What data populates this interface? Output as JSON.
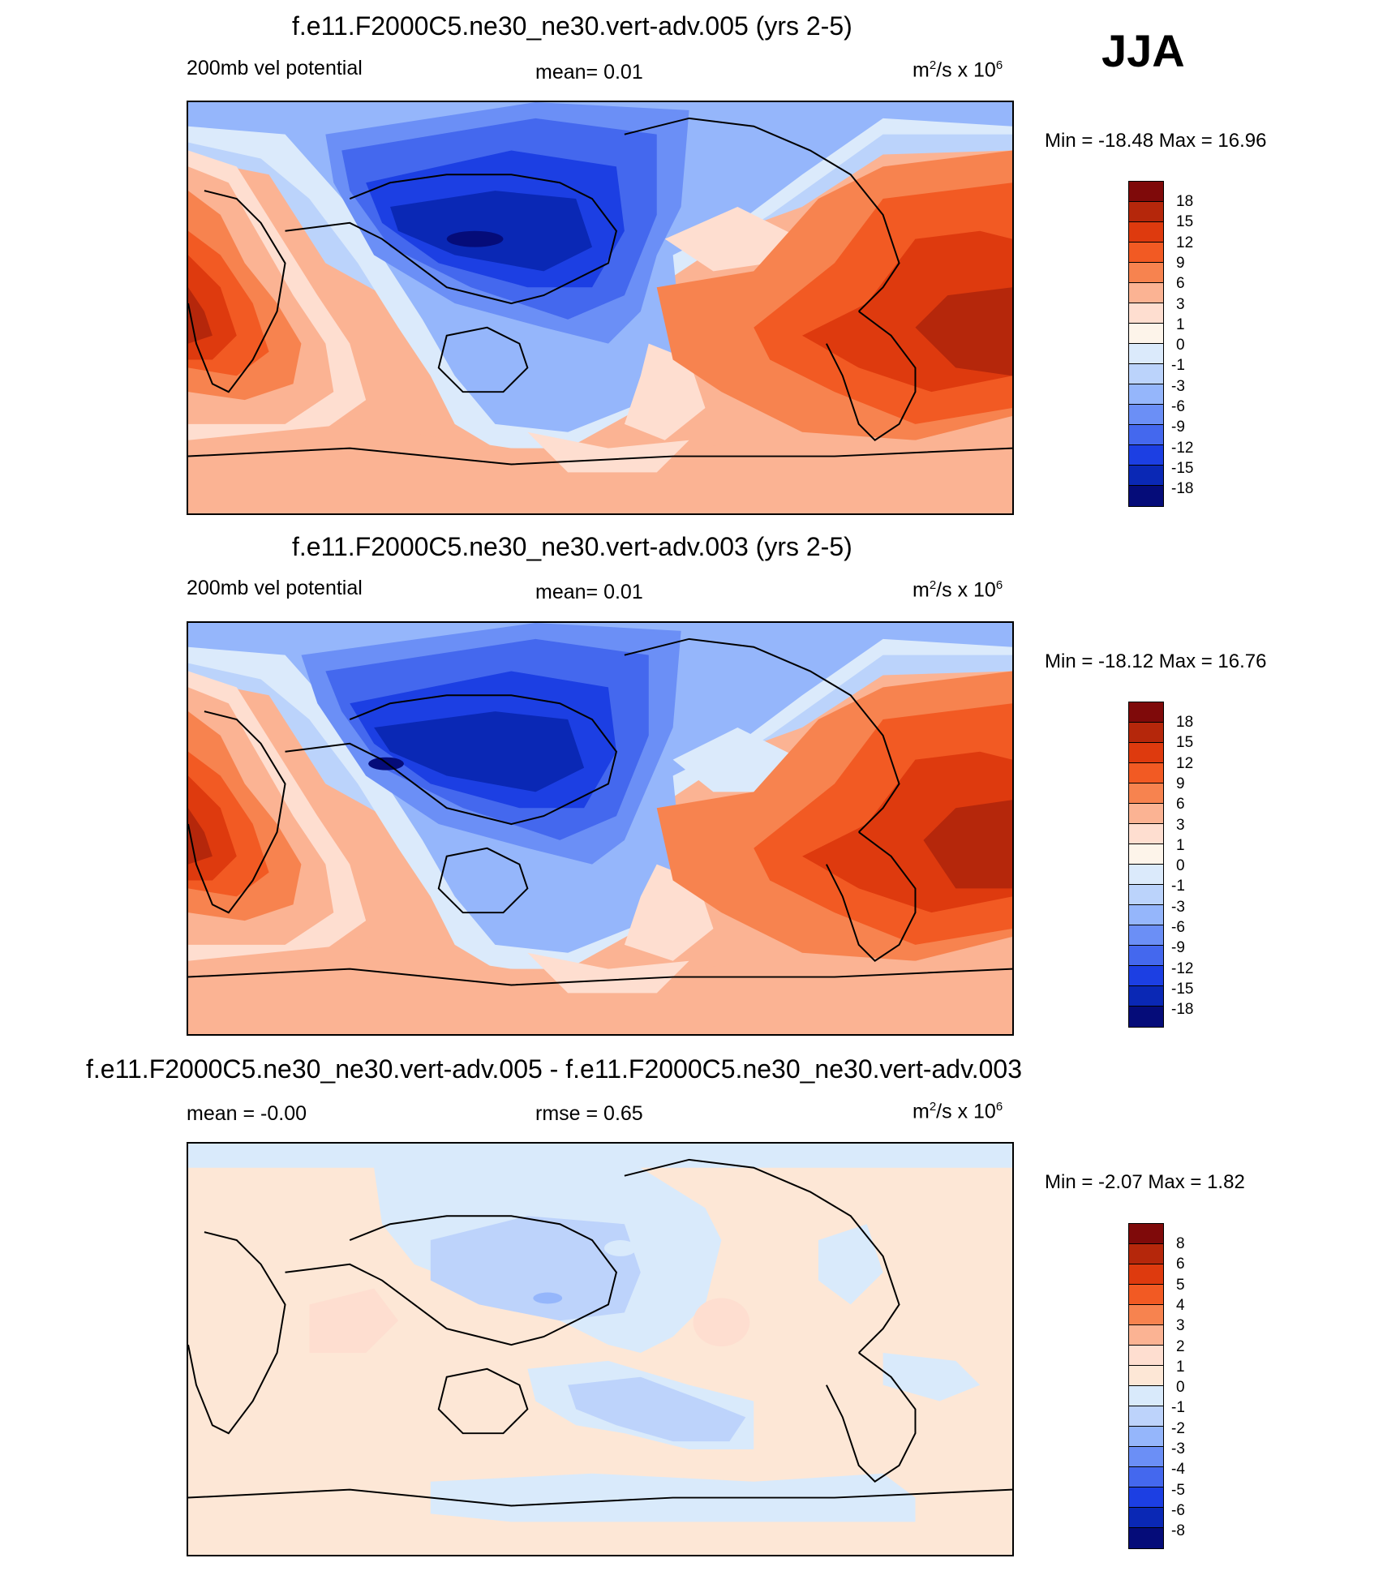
{
  "season": "JJA",
  "palettes": {
    "main": [
      "#7f0a0a",
      "#b5270b",
      "#de3a0e",
      "#f25a23",
      "#f7834f",
      "#fbb393",
      "#feded0",
      "#fdf4ea",
      "#dbeafb",
      "#bbd3fb",
      "#95b6fb",
      "#6b8ff6",
      "#4468ee",
      "#1c3fe3",
      "#0a28b5",
      "#050c79"
    ],
    "diff": [
      "#7f0a0a",
      "#b5270b",
      "#de3a0e",
      "#f25a23",
      "#f7834f",
      "#fbb393",
      "#feded0",
      "#fde7d6",
      "#d9eafb",
      "#bdd3fb",
      "#95b6fb",
      "#6b8ff6",
      "#4468ee",
      "#1c3fe3",
      "#0a28b5",
      "#050c79"
    ]
  },
  "panels": [
    {
      "title": "f.e11.F2000C5.ne30_ne30.vert-adv.005 (yrs 2-5)",
      "left": "200mb vel potential",
      "center": "mean=   0.01",
      "units": "m²/s x 10⁶",
      "minmax": "Min = -18.48 Max =  16.96",
      "levels": [
        "18",
        "15",
        "12",
        "9",
        "6",
        "3",
        "1",
        "0",
        "-1",
        "-3",
        "-6",
        "-9",
        "-12",
        "-15",
        "-18"
      ]
    },
    {
      "title": "f.e11.F2000C5.ne30_ne30.vert-adv.003 (yrs 2-5)",
      "left": "200mb vel potential",
      "center": "mean=   0.01",
      "units": "m²/s x 10⁶",
      "minmax": "Min = -18.12 Max =  16.76",
      "levels": [
        "18",
        "15",
        "12",
        "9",
        "6",
        "3",
        "1",
        "0",
        "-1",
        "-3",
        "-6",
        "-9",
        "-12",
        "-15",
        "-18"
      ]
    },
    {
      "title": "f.e11.F2000C5.ne30_ne30.vert-adv.005 - f.e11.F2000C5.ne30_ne30.vert-adv.003",
      "left": "mean =  -0.00",
      "center": "rmse =   0.65",
      "units": "m²/s x 10⁶",
      "minmax": "Min =  -2.07 Max =   1.82",
      "levels": [
        "8",
        "6",
        "5",
        "4",
        "3",
        "2",
        "1",
        "0",
        "-1",
        "-2",
        "-3",
        "-4",
        "-5",
        "-6",
        "-8"
      ]
    }
  ]
}
